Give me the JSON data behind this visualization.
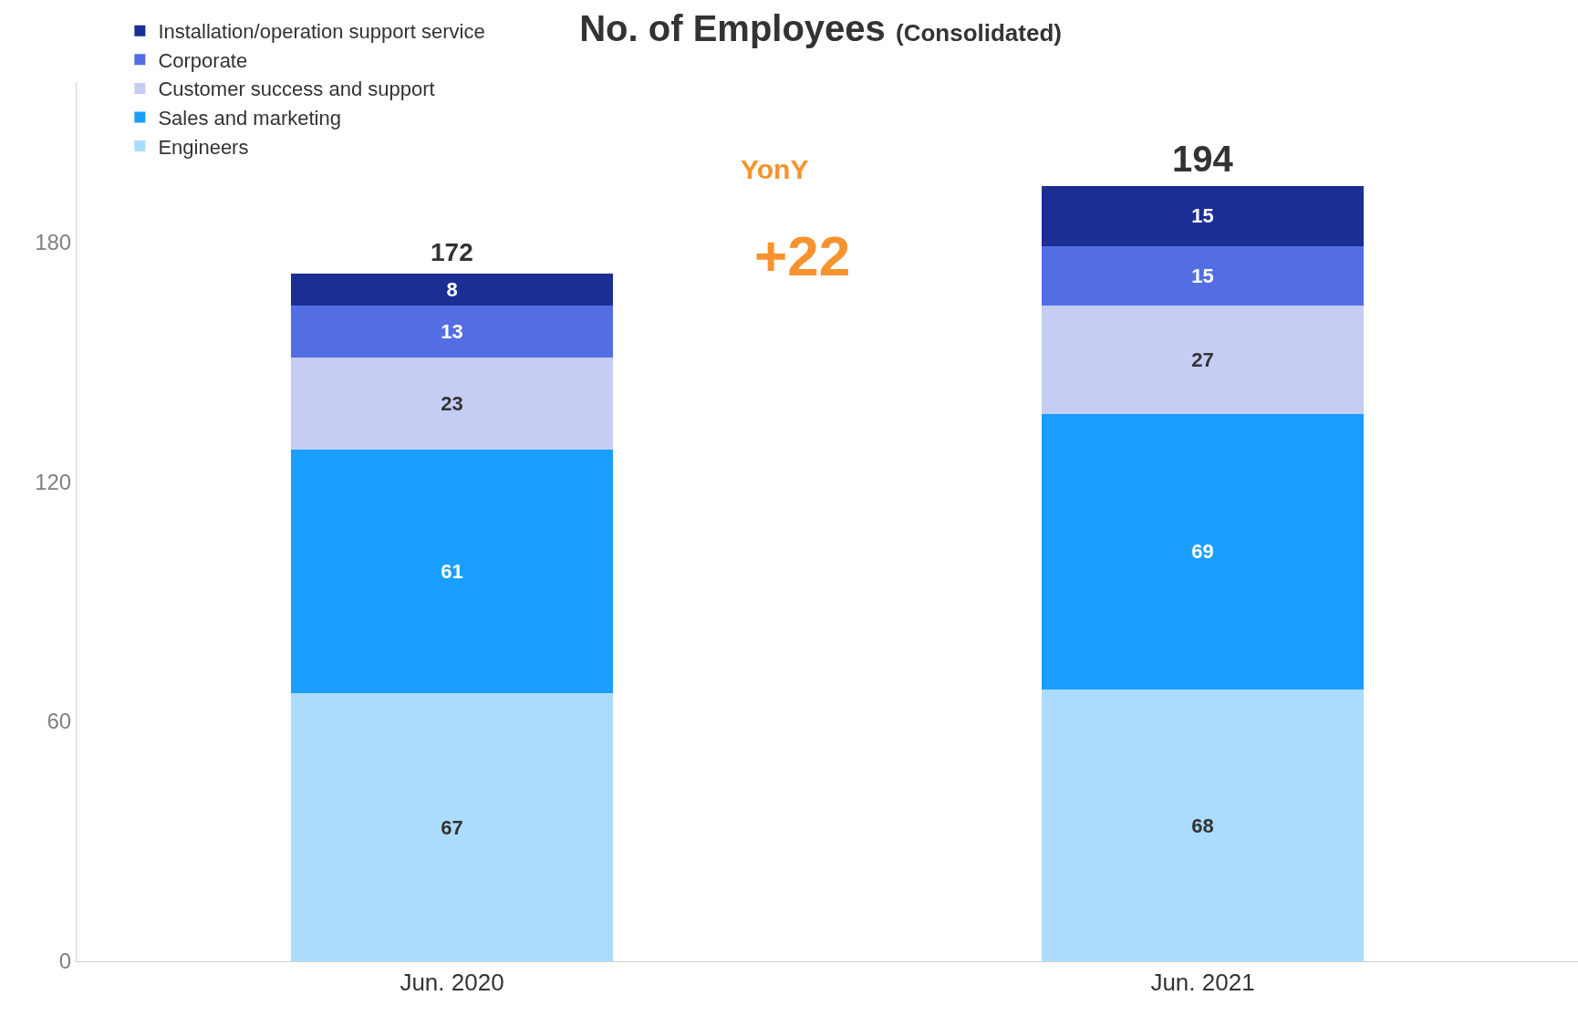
{
  "chart_data": {
    "type": "bar",
    "stacked": true,
    "title": "No. of Employees",
    "subtitle": "(Consolidated)",
    "categories": [
      "Jun. 2020",
      "Jun. 2021"
    ],
    "series": [
      {
        "name": "Engineers",
        "color": "#acdcfd",
        "values": [
          67,
          68
        ]
      },
      {
        "name": "Sales and marketing",
        "color": "#1a9eff",
        "values": [
          61,
          69
        ]
      },
      {
        "name": "Customer success and support",
        "color": "#c5cdf4",
        "values": [
          23,
          27
        ]
      },
      {
        "name": "Corporate",
        "color": "#536ee3",
        "values": [
          13,
          15
        ]
      },
      {
        "name": "Installation/operation support service",
        "color": "#1a2e93",
        "values": [
          8,
          15
        ]
      }
    ],
    "totals": [
      "172",
      "194"
    ],
    "annotations": [
      "YonY",
      "+22"
    ],
    "ylim": [
      0,
      220
    ],
    "yticks": [
      0,
      60,
      120,
      180
    ],
    "legend": "top left",
    "data_labels": true
  }
}
